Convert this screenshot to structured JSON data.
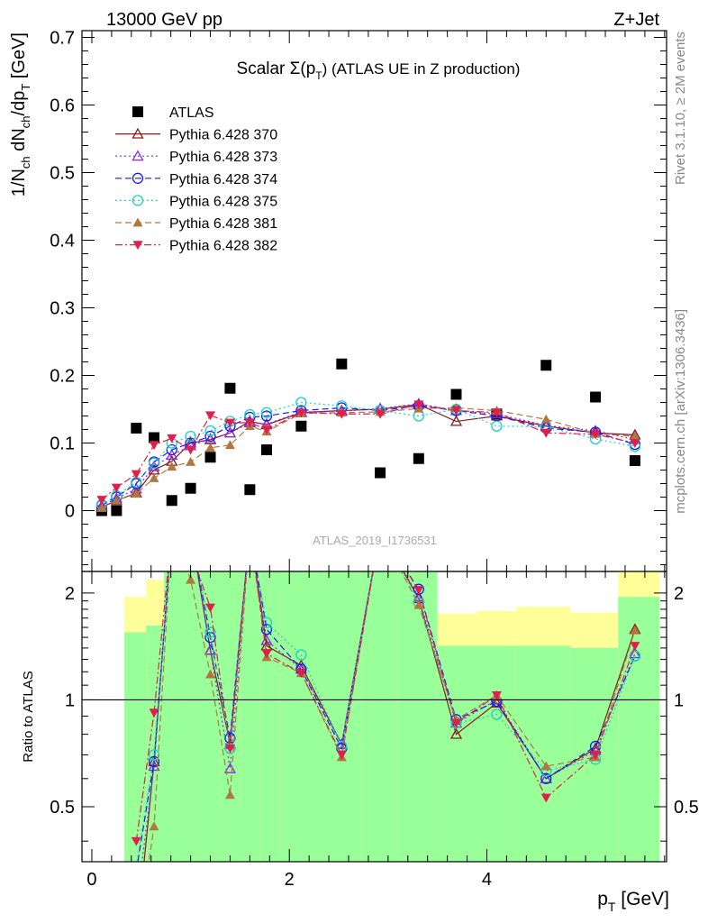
{
  "header": {
    "left": "13000 GeV pp",
    "right": "Z+Jet"
  },
  "side_labels": {
    "rivet": "Rivet 3.1.10, ≥ 2M events",
    "mcplots": "mcplots.cern.ch [arXiv:1306.3436]"
  },
  "colors": {
    "ATLAS": "#000000",
    "Pythia 6.428 370": "#8b1a1a",
    "Pythia 6.428 373": "#8a2be2",
    "Pythia 6.428 374": "#1a1aee",
    "Pythia 6.428 375": "#20d0c0",
    "Pythia 6.428 381": "#b07840",
    "Pythia 6.428 382": "#e0204a",
    "band_outer": "#ffff99",
    "band_inner": "#99ff99"
  },
  "chart_data": [
    {
      "type": "scatter",
      "panel": "main",
      "title_prefix": "Scalar Σ(p",
      "title_sub": "T",
      "title_suffix": ") (ATLAS UE in Z production)",
      "watermark": "ATLAS_2019_I1736531",
      "ylabel": "1/N_ch dN_ch/dp_T [GeV]",
      "xlim": [
        -0.1,
        5.82
      ],
      "ylim": [
        -0.09,
        0.71
      ],
      "yticks": [
        0,
        0.1,
        0.2,
        0.3,
        0.4,
        0.5,
        0.6,
        0.7
      ],
      "ytick_labels": [
        "0",
        "0.1",
        "0.2",
        "0.3",
        "0.4",
        "0.5",
        "0.6",
        "0.7"
      ],
      "legend_position": "top-left",
      "x": [
        0.1,
        0.25,
        0.45,
        0.63,
        0.81,
        1.0,
        1.2,
        1.4,
        1.6,
        1.77,
        2.12,
        2.53,
        2.92,
        3.31,
        3.69,
        4.1,
        4.6,
        5.1,
        5.5
      ],
      "series": [
        {
          "name": "ATLAS",
          "marker": "square",
          "line": "none",
          "values": [
            0.0,
            0.0,
            0.122,
            0.108,
            0.015,
            0.033,
            0.079,
            0.181,
            0.031,
            0.09,
            0.125,
            0.217,
            0.056,
            0.077,
            0.172,
            0.143,
            0.215,
            0.168,
            0.074
          ]
        },
        {
          "name": "Pythia 6.428 370",
          "marker": "triangle-open",
          "line": "solid",
          "values": [
            0.005,
            0.015,
            0.026,
            0.06,
            0.073,
            0.1,
            0.105,
            0.115,
            0.132,
            0.127,
            0.145,
            0.148,
            0.15,
            0.157,
            0.132,
            0.14,
            0.125,
            0.115,
            0.112
          ]
        },
        {
          "name": "Pythia 6.428 373",
          "marker": "triangle-open",
          "line": "dotted",
          "values": [
            0.007,
            0.018,
            0.032,
            0.065,
            0.082,
            0.096,
            0.106,
            0.115,
            0.13,
            0.128,
            0.146,
            0.147,
            0.151,
            0.158,
            0.148,
            0.143,
            0.126,
            0.118,
            0.105
          ]
        },
        {
          "name": "Pythia 6.428 374",
          "marker": "circle-open",
          "line": "dashed",
          "values": [
            0.008,
            0.02,
            0.04,
            0.072,
            0.09,
            0.1,
            0.11,
            0.125,
            0.138,
            0.14,
            0.148,
            0.152,
            0.148,
            0.155,
            0.148,
            0.14,
            0.122,
            0.116,
            0.098
          ]
        },
        {
          "name": "Pythia 6.428 375",
          "marker": "circle-open",
          "line": "dotted",
          "values": [
            0.009,
            0.022,
            0.042,
            0.07,
            0.1,
            0.11,
            0.118,
            0.132,
            0.142,
            0.145,
            0.16,
            0.155,
            0.148,
            0.14,
            0.15,
            0.125,
            0.124,
            0.106,
            0.095
          ]
        },
        {
          "name": "Pythia 6.428 381",
          "marker": "triangle-filled",
          "line": "dashed",
          "values": [
            0.004,
            0.015,
            0.025,
            0.048,
            0.065,
            0.072,
            0.093,
            0.097,
            0.125,
            0.117,
            0.144,
            0.145,
            0.146,
            0.151,
            0.152,
            0.148,
            0.135,
            0.114,
            0.11
          ]
        },
        {
          "name": "Pythia 6.428 382",
          "marker": "triangle-down-filled",
          "line": "dashdot",
          "values": [
            0.016,
            0.034,
            0.054,
            0.097,
            0.107,
            0.09,
            0.141,
            0.13,
            0.13,
            0.12,
            0.145,
            0.143,
            0.143,
            0.157,
            0.148,
            0.145,
            0.115,
            0.113,
            0.1
          ]
        }
      ]
    },
    {
      "type": "line",
      "panel": "ratio",
      "ylabel": "Ratio to ATLAS",
      "xlabel": "p_T [GeV]",
      "xlim": [
        -0.1,
        5.82
      ],
      "ylim": [
        0.35,
        2.3
      ],
      "yticks": [
        0.5,
        1,
        2
      ],
      "ytick_labels": [
        "0.5",
        "1",
        "2"
      ],
      "xticks": [
        0,
        2,
        4
      ],
      "xtick_labels": [
        "0",
        "2",
        "4"
      ],
      "reference_line": 1,
      "bands": {
        "edges": [
          0.0,
          0.33,
          0.55,
          0.73,
          0.9,
          1.1,
          1.3,
          1.5,
          1.7,
          1.9,
          2.35,
          2.73,
          3.1,
          3.5,
          3.9,
          4.3,
          4.85,
          5.33,
          5.75
        ],
        "inner_low": [
          null,
          0.35,
          0.35,
          0.35,
          0.35,
          0.35,
          0.35,
          0.35,
          0.35,
          0.35,
          0.35,
          0.35,
          0.35,
          0.35,
          0.35,
          0.35,
          0.35,
          0.35
        ],
        "inner_high": [
          null,
          1.55,
          1.62,
          2.3,
          2.3,
          2.3,
          2.3,
          2.3,
          2.3,
          2.3,
          2.3,
          2.3,
          2.3,
          1.42,
          1.42,
          1.42,
          1.4,
          1.95
        ],
        "outer_low": [
          null,
          0.35,
          0.35,
          0.35,
          0.35,
          0.35,
          0.35,
          0.35,
          0.35,
          0.35,
          0.72,
          0.35,
          0.35,
          0.7,
          0.69,
          0.68,
          0.69,
          0.35
        ],
        "outer_high": [
          null,
          1.95,
          2.18,
          2.3,
          2.3,
          2.3,
          2.3,
          2.3,
          2.3,
          2.07,
          1.73,
          2.3,
          2.3,
          1.75,
          1.78,
          1.83,
          1.76,
          2.3
        ]
      },
      "x": [
        0.1,
        0.25,
        0.45,
        0.63,
        0.81,
        1.0,
        1.2,
        1.4,
        1.6,
        1.77,
        2.12,
        2.53,
        2.92,
        3.31,
        3.69,
        4.1,
        4.6,
        5.1,
        5.5
      ],
      "series": [
        {
          "name": "Pythia 6.428 370",
          "values": [
            null,
            null,
            0.21,
            0.67,
            3.0,
            3.0,
            1.38,
            0.75,
            3.0,
            1.42,
            1.25,
            0.75,
            3.0,
            1.93,
            0.8,
            0.98,
            0.6,
            0.73,
            1.58
          ]
        },
        {
          "name": "Pythia 6.428 373",
          "values": [
            null,
            null,
            0.26,
            0.65,
            3.0,
            3.0,
            1.38,
            0.64,
            3.0,
            1.47,
            1.22,
            0.75,
            3.0,
            1.95,
            0.86,
            1.0,
            0.6,
            0.72,
            1.35
          ]
        },
        {
          "name": "Pythia 6.428 374",
          "values": [
            null,
            null,
            0.33,
            0.67,
            3.0,
            3.0,
            1.5,
            0.78,
            3.0,
            1.58,
            1.22,
            0.73,
            3.0,
            2.05,
            0.88,
            0.99,
            0.6,
            0.74,
            1.33
          ]
        },
        {
          "name": "Pythia 6.428 375",
          "values": [
            null,
            null,
            0.34,
            0.7,
            3.0,
            3.0,
            1.55,
            0.73,
            3.0,
            1.65,
            1.34,
            0.74,
            3.0,
            1.88,
            0.86,
            0.91,
            0.63,
            0.68,
            1.33
          ]
        },
        {
          "name": "Pythia 6.428 381",
          "values": [
            null,
            null,
            0.2,
            0.44,
            3.0,
            2.18,
            1.18,
            0.54,
            3.0,
            1.32,
            1.19,
            0.69,
            3.0,
            1.85,
            0.88,
            1.03,
            0.65,
            0.69,
            1.57
          ]
        },
        {
          "name": "Pythia 6.428 382",
          "values": [
            null,
            null,
            0.4,
            0.92,
            3.0,
            2.62,
            1.82,
            0.73,
            3.0,
            1.35,
            1.19,
            0.7,
            3.0,
            2.04,
            0.86,
            1.03,
            0.53,
            0.7,
            1.42
          ]
        }
      ]
    }
  ]
}
